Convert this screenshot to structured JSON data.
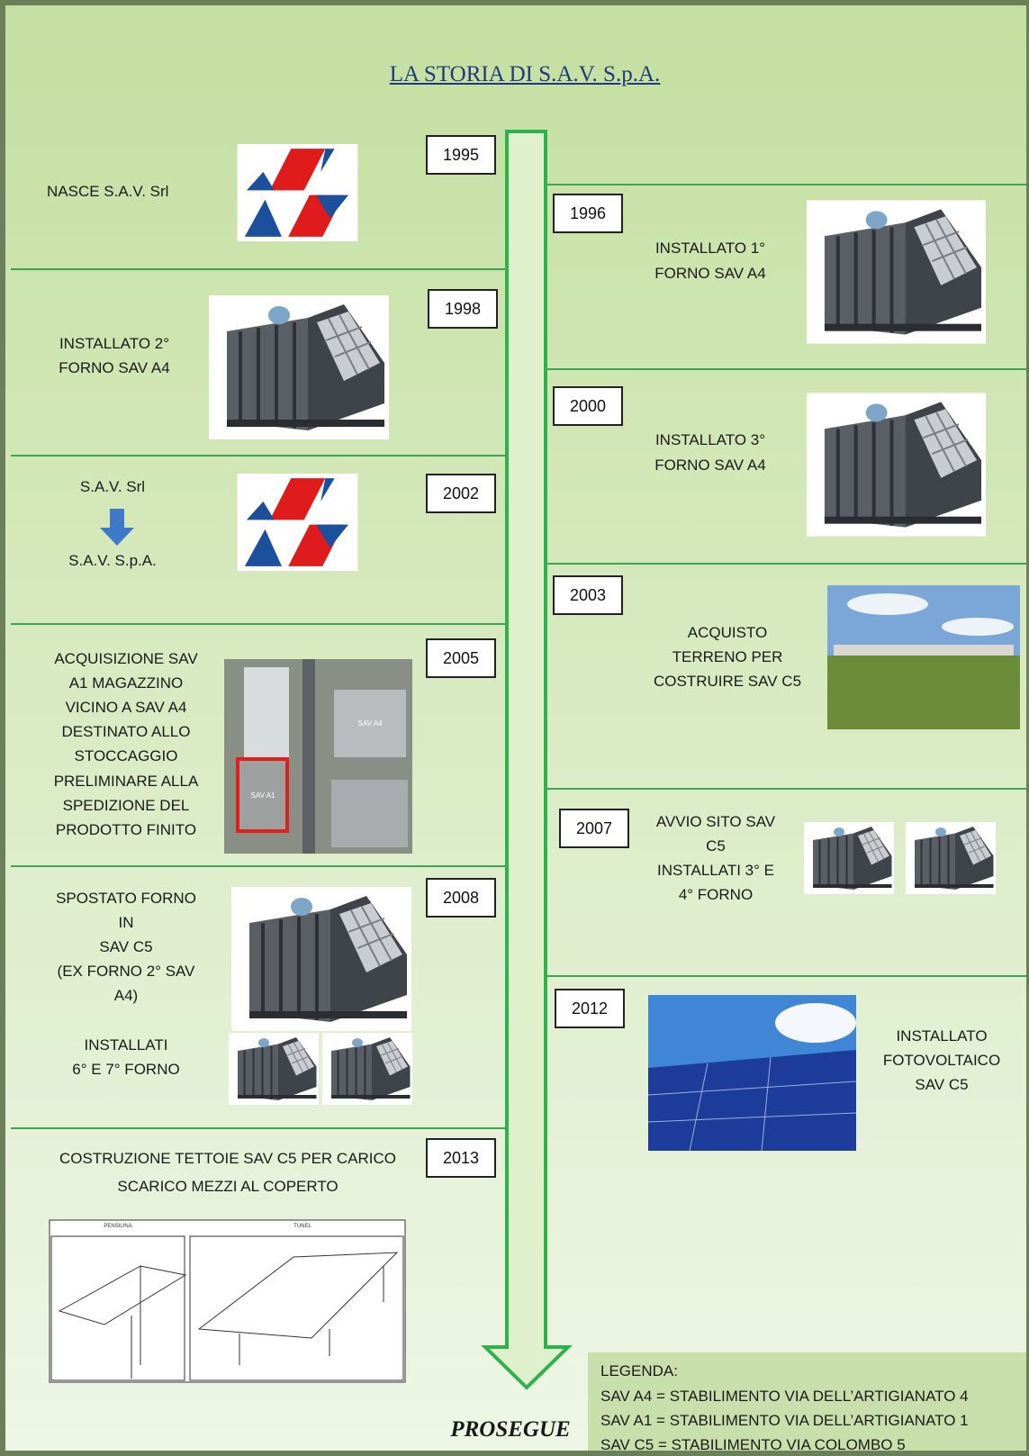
{
  "title": "LA STORIA DI S.A.V. S.p.A.",
  "events": [
    {
      "year": "1995",
      "lines": [
        "NASCE S.A.V. Srl"
      ]
    },
    {
      "year": "1996",
      "lines": [
        "INSTALLATO 1°",
        "FORNO SAV A4"
      ]
    },
    {
      "year": "1998",
      "lines": [
        "INSTALLATO 2°",
        "FORNO SAV A4"
      ]
    },
    {
      "year": "2000",
      "lines": [
        "INSTALLATO 3°",
        "FORNO SAV A4"
      ]
    },
    {
      "year": "2002",
      "lines": [
        "S.A.V. Srl",
        "S.A.V. S.p.A."
      ]
    },
    {
      "year": "2003",
      "lines": [
        "ACQUISTO",
        "TERRENO PER",
        "COSTRUIRE SAV C5"
      ]
    },
    {
      "year": "2005",
      "lines": [
        "ACQUISIZIONE SAV",
        "A1 MAGAZZINO",
        "VICINO A SAV A4",
        "DESTINATO ALLO",
        "STOCCAGGIO",
        "PRELIMINARE ALLA",
        "SPEDIZIONE DEL",
        "PRODOTTO FINITO"
      ],
      "photo_labels": [
        "SAV A4",
        "SAV A1"
      ]
    },
    {
      "year": "2007",
      "lines": [
        "AVVIO SITO SAV",
        "C5",
        "INSTALLATI 3° E",
        "4° FORNO"
      ]
    },
    {
      "year": "2008",
      "lines": [
        "SPOSTATO FORNO",
        "IN",
        "SAV C5",
        "(EX FORNO 2° SAV",
        "A4)",
        "INSTALLATI",
        "6° E 7° FORNO"
      ]
    },
    {
      "year": "2012",
      "lines": [
        "INSTALLATO",
        "FOTOVOLTAICO",
        "SAV C5"
      ]
    },
    {
      "year": "2013",
      "lines": [
        "COSTRUZIONE TETTOIE SAV C5 PER CARICO",
        "SCARICO MEZZI AL COPERTO"
      ],
      "drawing_labels": [
        "PENSILINA",
        "TUNEL"
      ]
    }
  ],
  "legend": {
    "title": "LEGENDA:",
    "items": [
      "SAV A4 = STABILIMENTO VIA DELL’ARTIGIANATO 4",
      "SAV A1 = STABILIMENTO VIA DELL’ARTIGIANATO 1",
      "SAV C5 = STABILIMENTO VIA COLOMBO 5"
    ]
  },
  "continue": "PROSEGUE"
}
